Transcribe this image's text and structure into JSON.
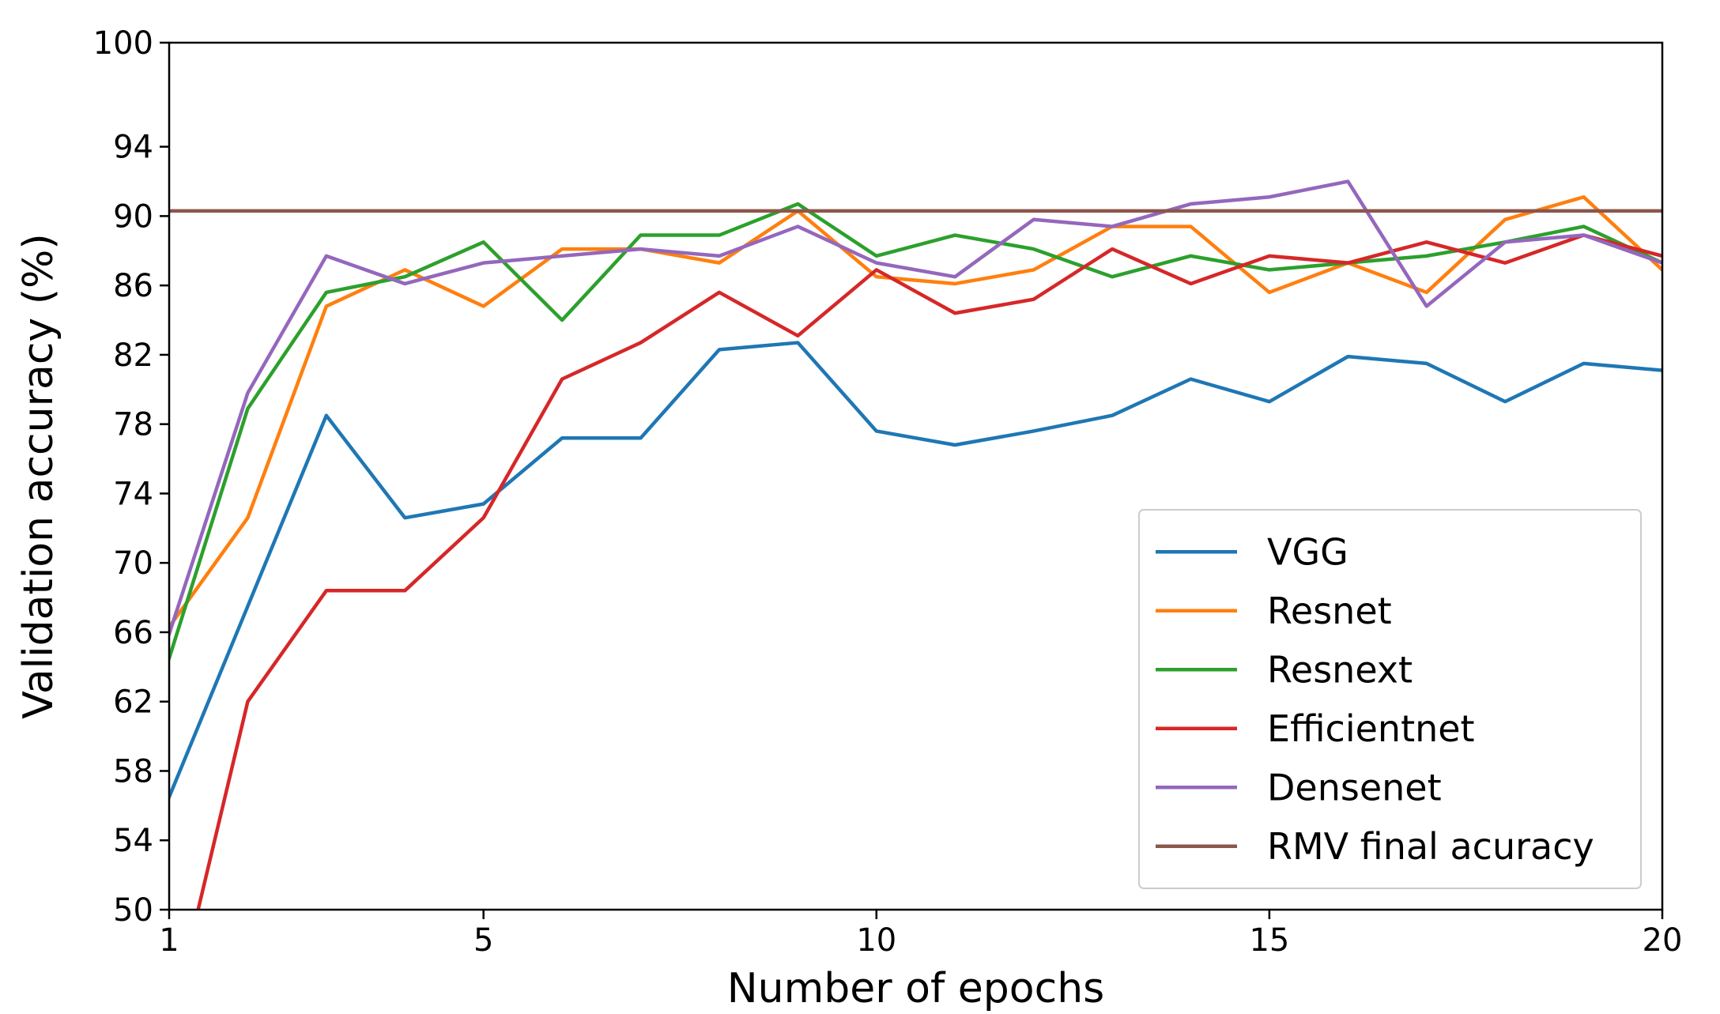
{
  "chart_data": {
    "type": "line",
    "title": "",
    "xlabel": "Number of epochs",
    "ylabel": "Validation accuracy (%)",
    "xlim": [
      1,
      20
    ],
    "ylim": [
      50,
      100
    ],
    "x_ticks": [
      1,
      5,
      10,
      15,
      20
    ],
    "y_ticks": [
      50,
      54,
      58,
      62,
      66,
      70,
      74,
      78,
      82,
      86,
      90,
      94,
      100
    ],
    "grid": false,
    "legend_position": "bottom-right",
    "x": [
      1,
      2,
      3,
      4,
      5,
      6,
      7,
      8,
      9,
      10,
      11,
      12,
      13,
      14,
      15,
      16,
      17,
      18,
      19,
      20
    ],
    "series": [
      {
        "name": "VGG",
        "color": "#1f77b4",
        "values": [
          56.5,
          67.5,
          78.5,
          72.6,
          73.4,
          77.2,
          77.2,
          82.3,
          82.7,
          77.6,
          76.8,
          77.6,
          78.5,
          80.6,
          79.3,
          81.9,
          81.5,
          79.3,
          81.5,
          81.1
        ]
      },
      {
        "name": "Resnet",
        "color": "#ff7f0e",
        "values": [
          66.3,
          72.6,
          84.8,
          86.9,
          84.8,
          88.1,
          88.1,
          87.3,
          90.3,
          86.5,
          86.1,
          86.9,
          89.4,
          89.4,
          85.6,
          87.3,
          85.6,
          89.8,
          91.1,
          86.9
        ]
      },
      {
        "name": "Resnext",
        "color": "#2ca02c",
        "values": [
          64.5,
          78.9,
          85.6,
          86.5,
          88.5,
          84.0,
          88.9,
          88.9,
          90.7,
          87.7,
          88.9,
          88.1,
          86.5,
          87.7,
          86.9,
          87.3,
          87.7,
          88.5,
          89.4,
          87.3
        ]
      },
      {
        "name": "Efficientnet",
        "color": "#d62728",
        "values": [
          43.0,
          62.0,
          68.4,
          68.4,
          72.6,
          80.6,
          82.7,
          85.6,
          83.1,
          86.9,
          84.4,
          85.2,
          88.1,
          86.1,
          87.7,
          87.3,
          88.5,
          87.3,
          88.9,
          87.7
        ]
      },
      {
        "name": "Densenet",
        "color": "#9467bd",
        "values": [
          65.9,
          79.8,
          87.7,
          86.1,
          87.3,
          87.7,
          88.1,
          87.7,
          89.4,
          87.3,
          86.5,
          89.8,
          89.4,
          90.7,
          91.1,
          92.0,
          84.8,
          88.5,
          88.9,
          87.3
        ]
      },
      {
        "name": "RMV final acuracy",
        "color": "#8c564b",
        "values": [
          90.3,
          90.3,
          90.3,
          90.3,
          90.3,
          90.3,
          90.3,
          90.3,
          90.3,
          90.3,
          90.3,
          90.3,
          90.3,
          90.3,
          90.3,
          90.3,
          90.3,
          90.3,
          90.3,
          90.3
        ]
      }
    ]
  }
}
